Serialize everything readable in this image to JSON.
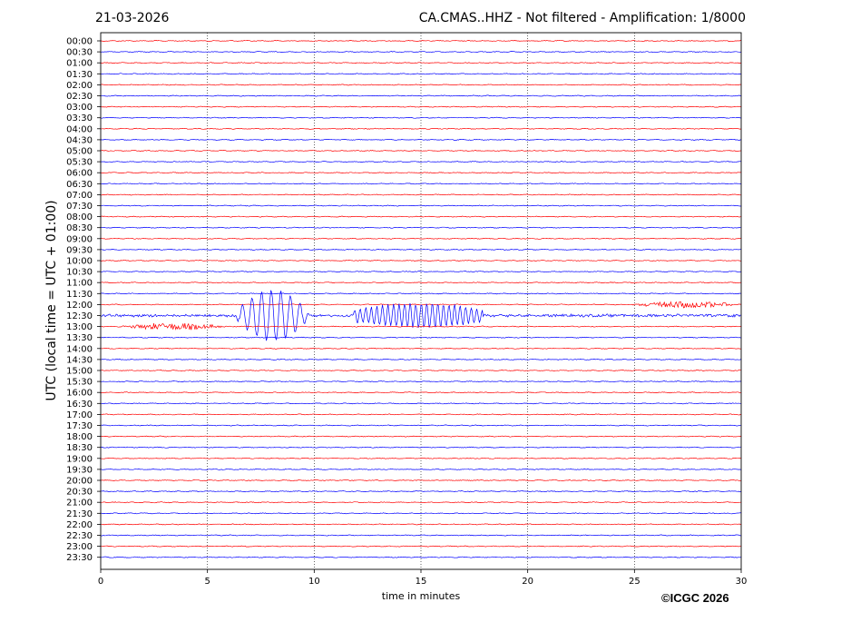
{
  "header": {
    "date": "21-03-2026",
    "title": "CA.CMAS..HHZ - Not filtered - Amplification: 1/8000"
  },
  "footer": {
    "copyright": "©ICGC 2026"
  },
  "chart_data": {
    "type": "line",
    "subtype": "helicorder",
    "title": "CA.CMAS..HHZ - Not filtered - Amplification: 1/8000",
    "xlabel": "time in minutes",
    "ylabel": "UTC (local time = UTC + 01:00)",
    "xlim": [
      0,
      30
    ],
    "x_ticks": [
      0,
      5,
      10,
      15,
      20,
      25,
      30
    ],
    "vertical_grid": "dotted at every x tick",
    "trace_colors": [
      "#ff0000",
      "#0000ff"
    ],
    "rows": [
      "00:00",
      "00:30",
      "01:00",
      "01:30",
      "02:00",
      "02:30",
      "03:00",
      "03:30",
      "04:00",
      "04:30",
      "05:00",
      "05:30",
      "06:00",
      "06:30",
      "07:00",
      "07:30",
      "08:00",
      "08:30",
      "09:00",
      "09:30",
      "10:00",
      "10:30",
      "11:00",
      "11:30",
      "12:00",
      "12:30",
      "13:00",
      "13:30",
      "14:00",
      "14:30",
      "15:00",
      "15:30",
      "16:00",
      "16:30",
      "17:00",
      "17:30",
      "18:00",
      "18:30",
      "19:00",
      "19:30",
      "20:00",
      "20:30",
      "21:00",
      "21:30",
      "22:00",
      "22:30",
      "23:00",
      "23:30"
    ],
    "events": [
      {
        "row": "12:30",
        "x_start_min": 6.3,
        "x_end_min": 9.8,
        "peak_amplitude_rows": 2.3,
        "pattern": "large oscillations"
      },
      {
        "row": "12:30",
        "x_start_min": 11.8,
        "x_end_min": 17.9,
        "peak_amplitude_rows": 1.1,
        "pattern": "regular oscillations"
      },
      {
        "row": "12:00",
        "x_start_min": 24.8,
        "x_end_min": 30,
        "peak_amplitude_rows": 0.3,
        "pattern": "noise burst"
      },
      {
        "row": "13:00",
        "x_start_min": 0.8,
        "x_end_min": 6.0,
        "peak_amplitude_rows": 0.3,
        "pattern": "noise burst"
      }
    ]
  }
}
